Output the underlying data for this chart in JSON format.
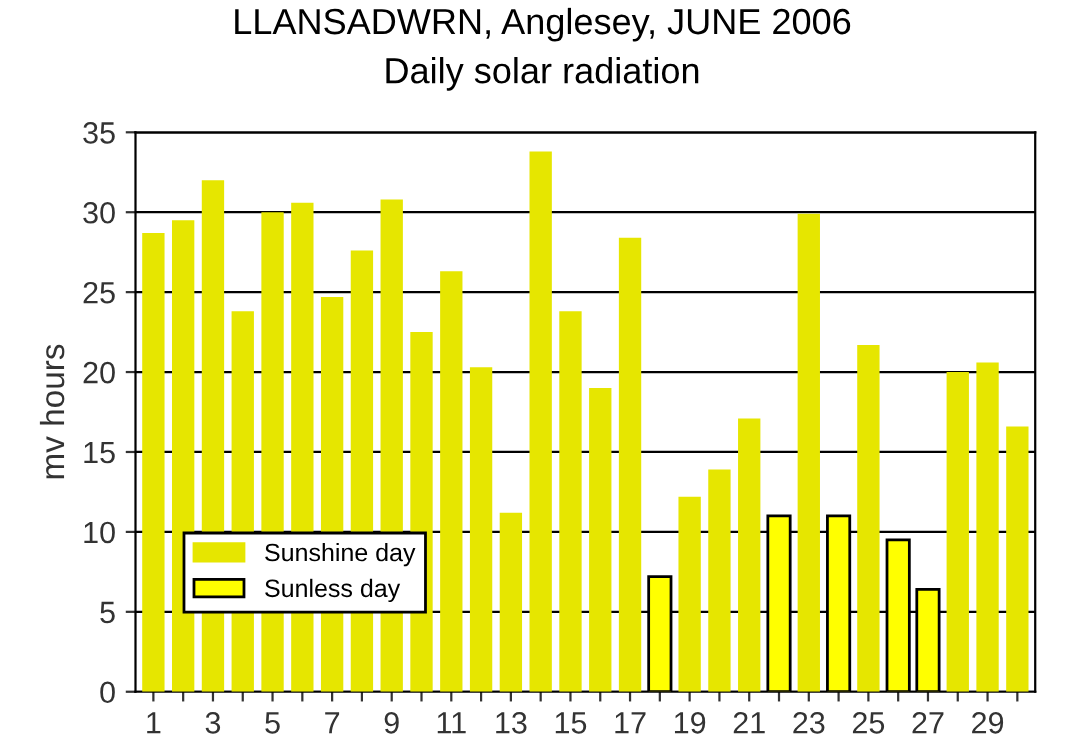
{
  "chart_data": {
    "type": "bar",
    "title": "LLANSADWRN, Anglesey, JUNE 2006",
    "subtitle": "Daily solar radiation",
    "ylabel": "mv hours",
    "categories": [
      "1",
      null,
      "3",
      null,
      "5",
      null,
      "7",
      null,
      "9",
      null,
      "11",
      null,
      "13",
      null,
      "15",
      null,
      "17",
      null,
      "19",
      null,
      "21",
      null,
      "23",
      null,
      "25",
      null,
      "27",
      null,
      "29",
      null
    ],
    "series": [
      {
        "name": "Sunshine day",
        "color": "#e6e600",
        "values": [
          28.7,
          29.5,
          32.0,
          23.8,
          30.0,
          30.6,
          24.7,
          27.6,
          30.8,
          22.5,
          26.3,
          20.3,
          11.2,
          33.8,
          23.8,
          19.0,
          28.4,
          null,
          12.2,
          13.9,
          17.1,
          null,
          29.9,
          null,
          21.7,
          null,
          null,
          20.0,
          20.6,
          16.6
        ]
      },
      {
        "name": "Sunless day",
        "color": "#ffff00",
        "values": [
          null,
          null,
          null,
          null,
          null,
          null,
          null,
          null,
          null,
          null,
          null,
          null,
          null,
          null,
          null,
          null,
          null,
          7.2,
          null,
          null,
          null,
          11.0,
          null,
          11.0,
          null,
          9.5,
          6.4,
          null,
          null,
          null
        ]
      }
    ],
    "ylim": [
      0,
      35
    ],
    "yticks": [
      0,
      5,
      10,
      15,
      20,
      25,
      30,
      35
    ],
    "grid": "y",
    "legend": "bottom left"
  }
}
